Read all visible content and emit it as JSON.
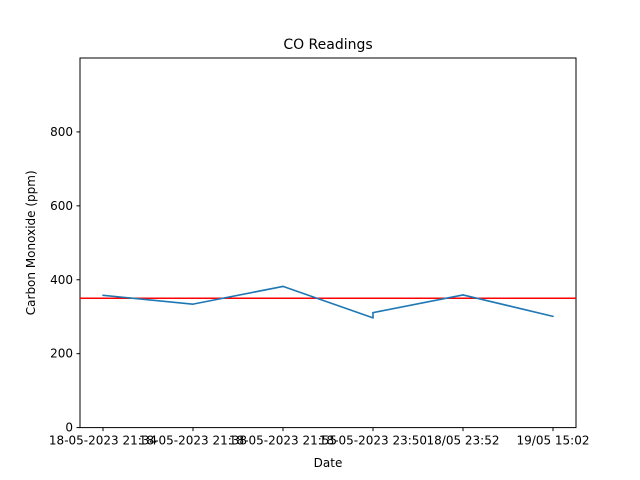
{
  "chart_data": {
    "type": "line",
    "title": "CO Readings",
    "xlabel": "Date",
    "ylabel": "Carbon Monoxide (ppm)",
    "ylim": [
      0,
      1000
    ],
    "yticks": [
      0,
      200,
      400,
      600,
      800
    ],
    "grid": false,
    "legend": "none",
    "categories": [
      "18-05-2023 21:34",
      "18-05-2023 21:38",
      "18-05-2023 21:55",
      "18-05-2023 23:50",
      "18/05 23:52",
      "19/05 15:02"
    ],
    "series": [
      {
        "color": "#1f77b4",
        "points": [
          {
            "x": 0,
            "y": 358
          },
          {
            "x": 1,
            "y": 334
          },
          {
            "x": 2,
            "y": 382
          },
          {
            "x": 3,
            "y": 297
          },
          {
            "x": 3,
            "y": 311
          },
          {
            "x": 4,
            "y": 359
          },
          {
            "x": 5,
            "y": 301
          }
        ]
      }
    ],
    "threshold": {
      "value": 350,
      "color": "#ff0000"
    }
  }
}
